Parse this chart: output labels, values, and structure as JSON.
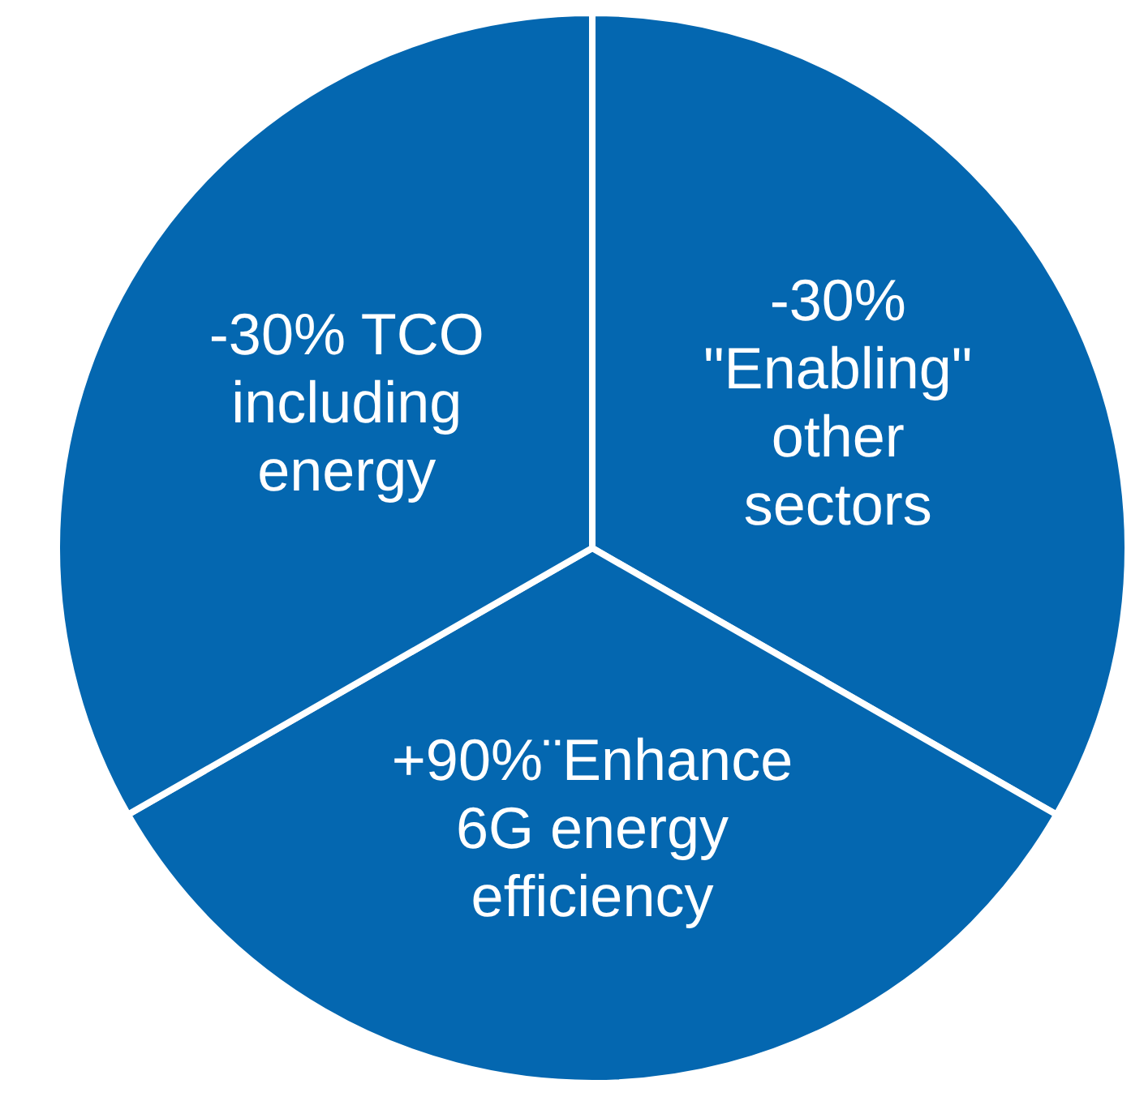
{
  "chart_data": {
    "type": "pie",
    "categories": [
      "-30% \"Enabling\" other sectors",
      "+90%¨Enhance 6G energy efficiency",
      "-30% TCO including energy"
    ],
    "values": [
      33.3,
      33.4,
      33.3
    ],
    "colors": [
      "#0467b0",
      "#0467b0",
      "#0467b0"
    ],
    "legend": false
  }
}
